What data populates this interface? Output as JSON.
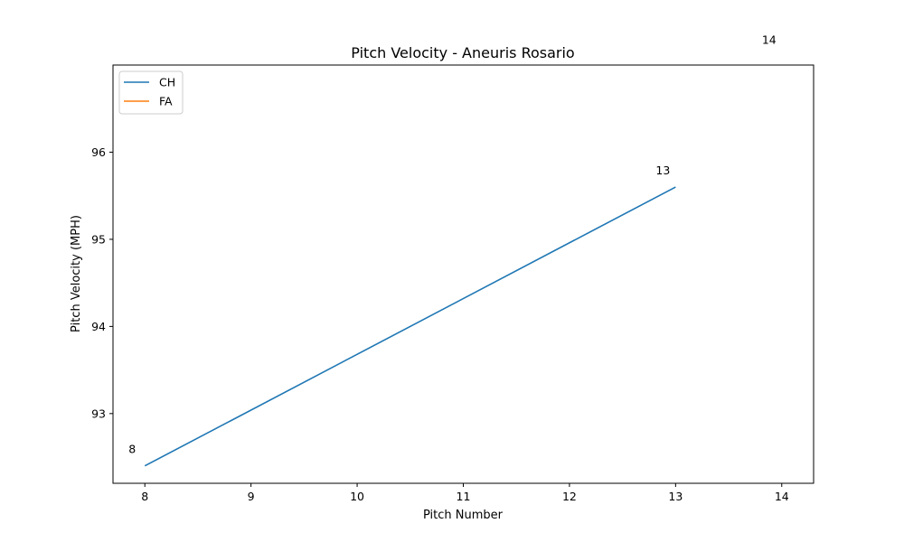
{
  "chart_data": {
    "type": "line",
    "title": "Pitch Velocity - Aneuris Rosario",
    "xlabel": "Pitch Number",
    "ylabel": "Pitch Velocity (MPH)",
    "xlim": [
      7.7,
      14.3
    ],
    "ylim": [
      92.2,
      97.0
    ],
    "xticks": [
      8,
      9,
      10,
      11,
      12,
      13,
      14
    ],
    "yticks": [
      93,
      94,
      95,
      96
    ],
    "grid": false,
    "legend": {
      "position": "upper-left"
    },
    "series": [
      {
        "name": "CH",
        "color": "#1f77b4",
        "x": [
          8,
          13
        ],
        "y": [
          92.4,
          95.6
        ]
      },
      {
        "name": "FA",
        "color": "#ff7f0e",
        "x": [
          14
        ],
        "y": [
          97.1
        ]
      }
    ],
    "annotations": [
      {
        "text": "8",
        "x": 8,
        "y": 92.4
      },
      {
        "text": "13",
        "x": 13,
        "y": 95.6
      },
      {
        "text": "14",
        "x": 14,
        "y": 97.1
      }
    ]
  }
}
